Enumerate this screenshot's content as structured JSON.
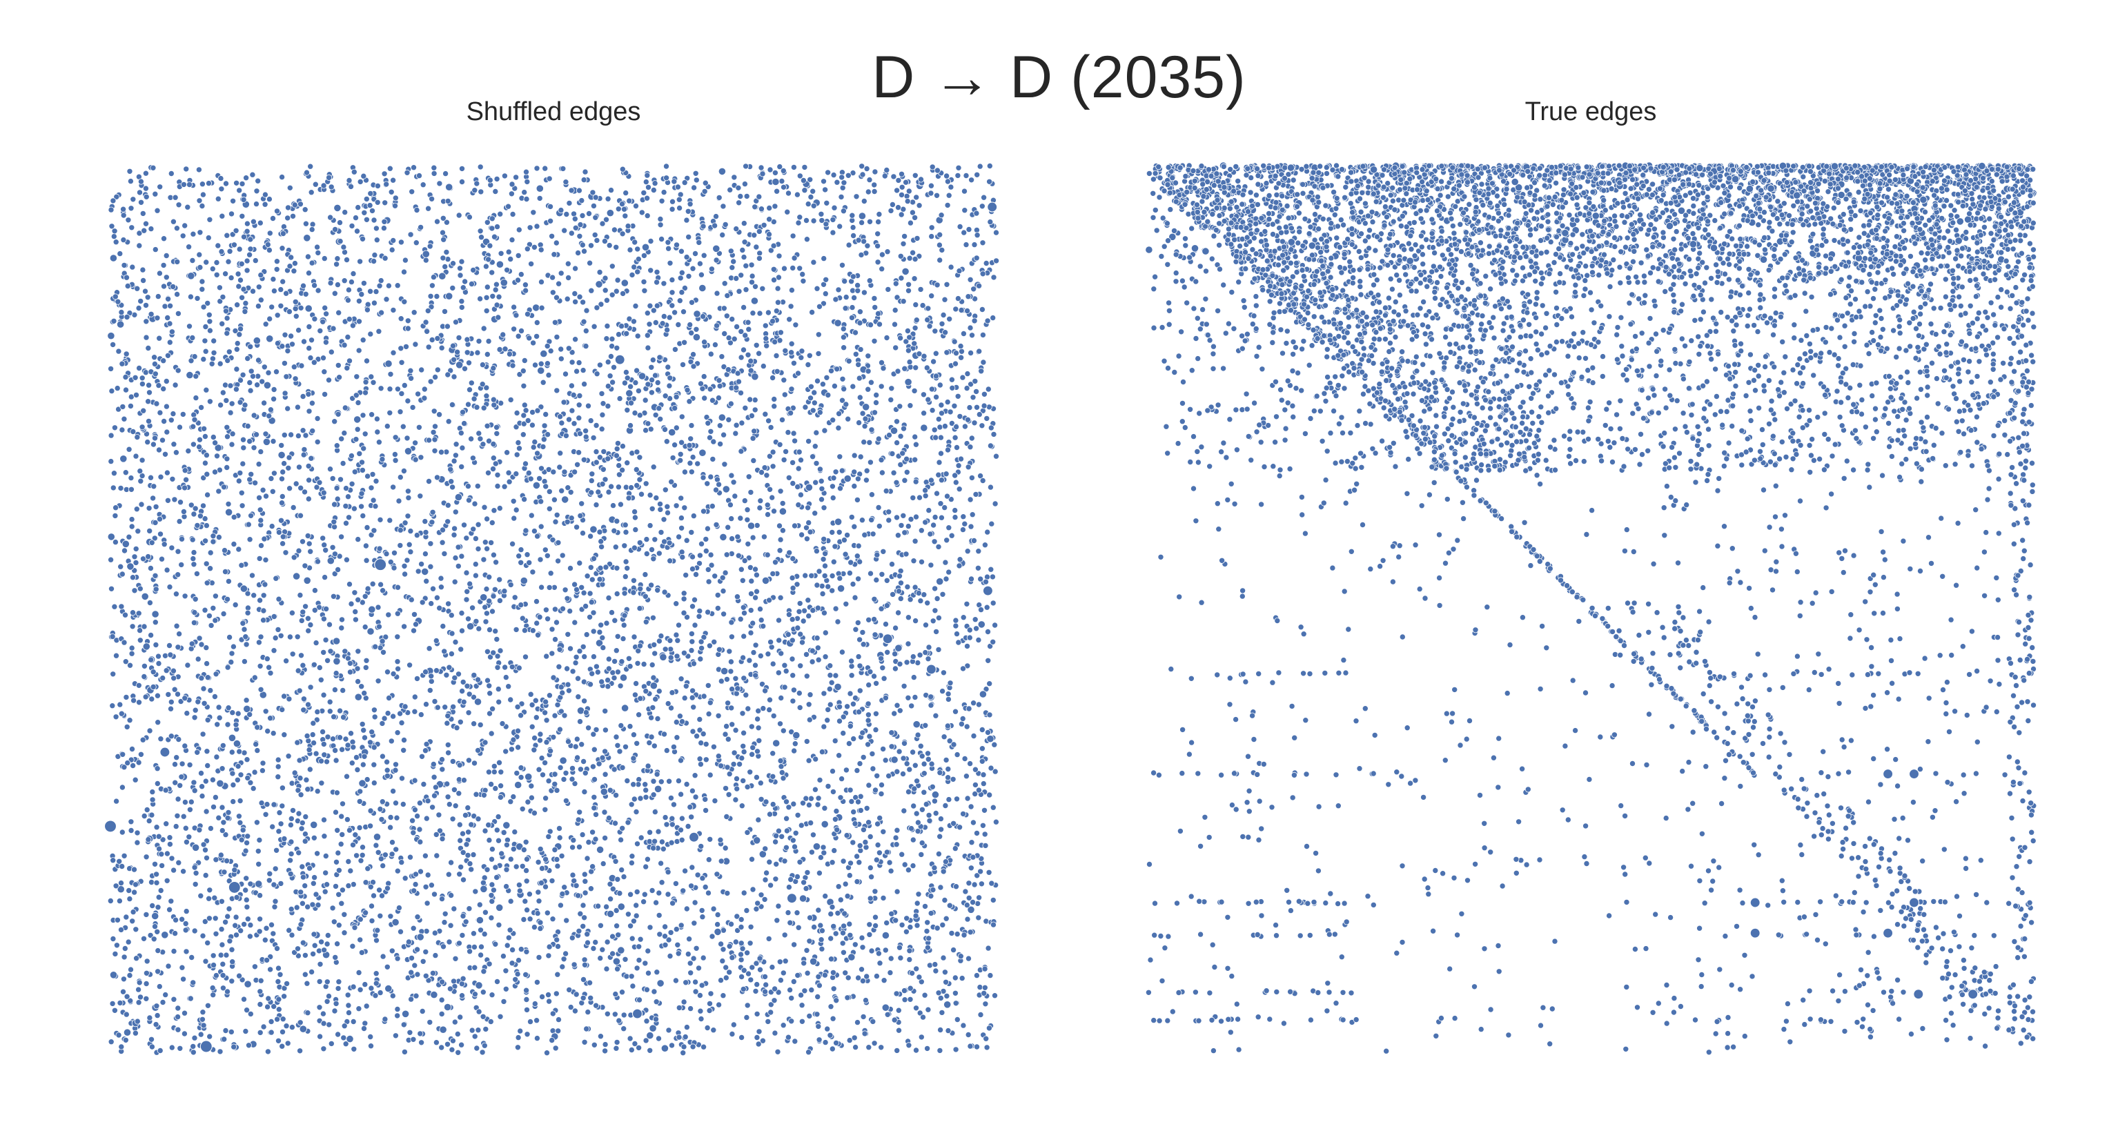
{
  "figure": {
    "title": "D → D (2035)"
  },
  "colors": {
    "marker": "#4c72b0",
    "marker_edge": "#ffffff",
    "background": "#ffffff",
    "text": "#262626"
  },
  "chart_data": [
    {
      "type": "scatter",
      "title": "Shuffled edges",
      "xlabel": "",
      "ylabel": "",
      "xlim": [
        0,
        2035
      ],
      "ylim": [
        0,
        2035
      ],
      "y_axis_inverted": true,
      "grid": false,
      "axes_visible": false,
      "legend": "none",
      "approx_point_count": 7300,
      "distribution": "uniform random over the full square",
      "marker_size_encoding": "edge weight; mostly weight 1, a few heavier points",
      "highlighted_points": [
        {
          "x": 2025,
          "y": 95,
          "weight": 3
        },
        {
          "x": 1170,
          "y": 445,
          "weight": 3
        },
        {
          "x": 620,
          "y": 915,
          "weight": 4
        },
        {
          "x": 2015,
          "y": 975,
          "weight": 3
        },
        {
          "x": 1785,
          "y": 1085,
          "weight": 3
        },
        {
          "x": 1885,
          "y": 1155,
          "weight": 3
        },
        {
          "x": 125,
          "y": 1345,
          "weight": 3
        },
        {
          "x": 0,
          "y": 1515,
          "weight": 4
        },
        {
          "x": 1340,
          "y": 1540,
          "weight": 3
        },
        {
          "x": 285,
          "y": 1655,
          "weight": 4
        },
        {
          "x": 1565,
          "y": 1680,
          "weight": 3
        },
        {
          "x": 1210,
          "y": 1945,
          "weight": 3
        },
        {
          "x": 220,
          "y": 2020,
          "weight": 4
        }
      ]
    },
    {
      "type": "scatter",
      "title": "True edges",
      "xlabel": "",
      "ylabel": "",
      "xlim": [
        0,
        2035
      ],
      "ylim": [
        0,
        2035
      ],
      "y_axis_inverted": true,
      "grid": false,
      "axes_visible": false,
      "legend": "none",
      "approx_point_count": 6800,
      "distribution": "dense band for source rows 0–700 (densest 0–230), diagonal line from (0,0) to about (1400,1400), sparse scatter and horizontal streaks below row 700",
      "marker_size_encoding": "edge weight; mostly weight 1, a few heavier points",
      "diagonal": {
        "from": [
          0,
          0
        ],
        "to": [
          1400,
          1400
        ]
      },
      "dense_rows_range": [
        0,
        700
      ],
      "densest_rows_range": [
        0,
        230
      ],
      "horizontal_streak_rows": [
        560,
        1165,
        1395,
        1690,
        1765,
        1895,
        1960
      ],
      "highlighted_points": [
        {
          "x": 1700,
          "y": 1395,
          "weight": 3
        },
        {
          "x": 1760,
          "y": 1395,
          "weight": 3
        },
        {
          "x": 1395,
          "y": 1690,
          "weight": 3
        },
        {
          "x": 1760,
          "y": 1690,
          "weight": 3
        },
        {
          "x": 1395,
          "y": 1760,
          "weight": 3
        },
        {
          "x": 1700,
          "y": 1760,
          "weight": 3
        },
        {
          "x": 1770,
          "y": 1900,
          "weight": 3
        },
        {
          "x": 1895,
          "y": 1900,
          "weight": 3
        }
      ]
    }
  ]
}
